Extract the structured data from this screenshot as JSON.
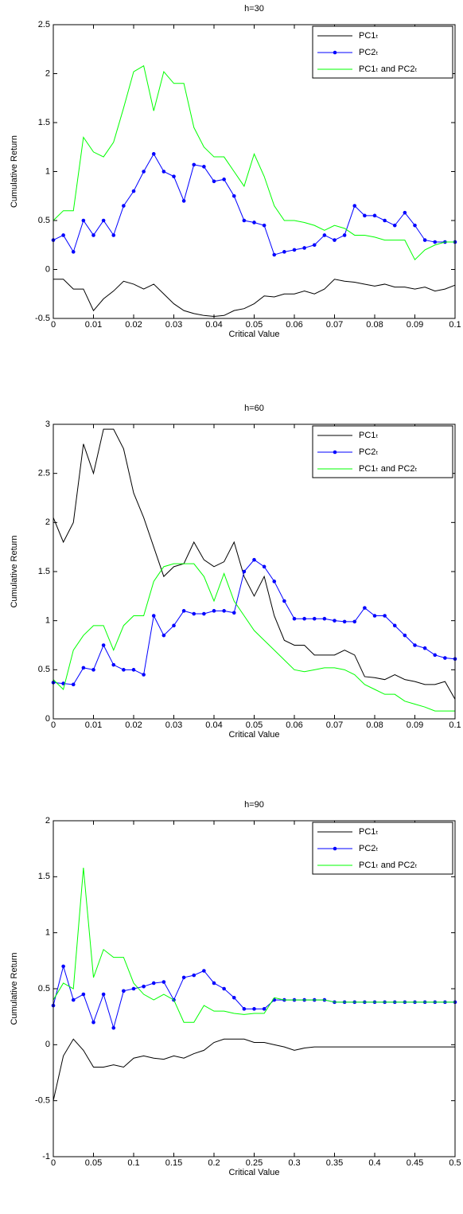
{
  "chart_data": [
    {
      "type": "line",
      "title": "h=30",
      "xlabel": "Critical Value",
      "ylabel": "Cumulative Return",
      "x": [
        0,
        0.0025,
        0.005,
        0.0075,
        0.01,
        0.0125,
        0.015,
        0.0175,
        0.02,
        0.0225,
        0.025,
        0.0275,
        0.03,
        0.0325,
        0.035,
        0.0375,
        0.04,
        0.0425,
        0.045,
        0.0475,
        0.05,
        0.0525,
        0.055,
        0.0575,
        0.06,
        0.0625,
        0.065,
        0.0675,
        0.07,
        0.0725,
        0.075,
        0.0775,
        0.08,
        0.0825,
        0.085,
        0.0875,
        0.09,
        0.0925,
        0.095,
        0.0975,
        0.1
      ],
      "series": [
        {
          "name": "PC1ₜ",
          "color": "#000000",
          "values": [
            -0.1,
            -0.1,
            -0.2,
            -0.2,
            -0.42,
            -0.3,
            -0.22,
            -0.12,
            -0.15,
            -0.2,
            -0.15,
            -0.25,
            -0.35,
            -0.42,
            -0.45,
            -0.47,
            -0.48,
            -0.47,
            -0.42,
            -0.4,
            -0.35,
            -0.27,
            -0.28,
            -0.25,
            -0.25,
            -0.22,
            -0.25,
            -0.2,
            -0.1,
            -0.12,
            -0.13,
            -0.15,
            -0.17,
            -0.15,
            -0.18,
            -0.18,
            -0.2,
            -0.18,
            -0.22,
            -0.2,
            -0.16
          ]
        },
        {
          "name": "PC2ₜ",
          "color": "#0000ff",
          "marker": "o",
          "values": [
            0.3,
            0.35,
            0.18,
            0.5,
            0.35,
            0.5,
            0.35,
            0.65,
            0.8,
            1.0,
            1.18,
            1.0,
            0.95,
            0.7,
            1.07,
            1.05,
            0.9,
            0.92,
            0.75,
            0.5,
            0.48,
            0.45,
            0.15,
            0.18,
            0.2,
            0.22,
            0.25,
            0.35,
            0.3,
            0.35,
            0.65,
            0.55,
            0.55,
            0.5,
            0.45,
            0.58,
            0.45,
            0.3,
            0.28,
            0.28,
            0.28
          ]
        },
        {
          "name": "PC1ₜ and PC2ₜ",
          "color": "#00ff00",
          "values": [
            0.5,
            0.6,
            0.6,
            1.35,
            1.2,
            1.15,
            1.3,
            1.65,
            2.02,
            2.08,
            1.62,
            2.02,
            1.9,
            1.9,
            1.45,
            1.25,
            1.15,
            1.15,
            1.0,
            0.85,
            1.18,
            0.95,
            0.65,
            0.5,
            0.5,
            0.48,
            0.45,
            0.4,
            0.45,
            0.42,
            0.35,
            0.35,
            0.33,
            0.3,
            0.3,
            0.3,
            0.1,
            0.2,
            0.25,
            0.28,
            0.28
          ]
        }
      ],
      "xlim": [
        0,
        0.1
      ],
      "xticks": [
        0,
        0.01,
        0.02,
        0.03,
        0.04,
        0.05,
        0.06,
        0.07,
        0.08,
        0.09,
        0.1
      ],
      "ylim": [
        -0.5,
        2.5
      ],
      "yticks": [
        -0.5,
        0,
        0.5,
        1,
        1.5,
        2,
        2.5
      ],
      "legend": "upper right"
    },
    {
      "type": "line",
      "title": "h=60",
      "xlabel": "Critical Value",
      "ylabel": "Cumulative Return",
      "x": [
        0,
        0.0025,
        0.005,
        0.0075,
        0.01,
        0.0125,
        0.015,
        0.0175,
        0.02,
        0.0225,
        0.025,
        0.0275,
        0.03,
        0.0325,
        0.035,
        0.0375,
        0.04,
        0.0425,
        0.045,
        0.0475,
        0.05,
        0.0525,
        0.055,
        0.0575,
        0.06,
        0.0625,
        0.065,
        0.0675,
        0.07,
        0.0725,
        0.075,
        0.0775,
        0.08,
        0.0825,
        0.085,
        0.0875,
        0.09,
        0.0925,
        0.095,
        0.0975,
        0.1
      ],
      "series": [
        {
          "name": "PC1ₜ",
          "color": "#000000",
          "values": [
            2.05,
            1.8,
            2.0,
            2.8,
            2.5,
            2.95,
            2.95,
            2.75,
            2.3,
            2.05,
            1.75,
            1.45,
            1.55,
            1.58,
            1.8,
            1.62,
            1.55,
            1.6,
            1.8,
            1.45,
            1.25,
            1.45,
            1.05,
            0.8,
            0.75,
            0.75,
            0.65,
            0.65,
            0.65,
            0.7,
            0.65,
            0.43,
            0.42,
            0.4,
            0.45,
            0.4,
            0.38,
            0.35,
            0.35,
            0.38,
            0.2
          ]
        },
        {
          "name": "PC2ₜ",
          "color": "#0000ff",
          "marker": "o",
          "values": [
            0.37,
            0.36,
            0.35,
            0.52,
            0.5,
            0.75,
            0.55,
            0.5,
            0.5,
            0.45,
            1.05,
            0.85,
            0.95,
            1.1,
            1.07,
            1.07,
            1.1,
            1.1,
            1.08,
            1.5,
            1.62,
            1.55,
            1.4,
            1.2,
            1.02,
            1.02,
            1.02,
            1.02,
            1.0,
            0.99,
            0.99,
            1.13,
            1.05,
            1.05,
            0.95,
            0.85,
            0.75,
            0.72,
            0.65,
            0.62,
            0.61
          ]
        },
        {
          "name": "PC1ₜ and PC2ₜ",
          "color": "#00ff00",
          "values": [
            0.4,
            0.3,
            0.7,
            0.85,
            0.95,
            0.95,
            0.7,
            0.95,
            1.05,
            1.05,
            1.4,
            1.55,
            1.58,
            1.58,
            1.58,
            1.45,
            1.2,
            1.48,
            1.2,
            1.05,
            0.9,
            0.8,
            0.7,
            0.6,
            0.5,
            0.48,
            0.5,
            0.52,
            0.52,
            0.5,
            0.45,
            0.35,
            0.3,
            0.25,
            0.25,
            0.18,
            0.15,
            0.12,
            0.08,
            0.08,
            0.08
          ]
        }
      ],
      "xlim": [
        0,
        0.1
      ],
      "xticks": [
        0,
        0.01,
        0.02,
        0.03,
        0.04,
        0.05,
        0.06,
        0.07,
        0.08,
        0.09,
        0.1
      ],
      "ylim": [
        0,
        3
      ],
      "yticks": [
        0,
        0.5,
        1,
        1.5,
        2,
        2.5,
        3
      ],
      "legend": "upper right"
    },
    {
      "type": "line",
      "title": "h=90",
      "xlabel": "Critical Value",
      "ylabel": "Cumulative Return",
      "x": [
        0,
        0.0125,
        0.025,
        0.0375,
        0.05,
        0.0625,
        0.075,
        0.0875,
        0.1,
        0.1125,
        0.125,
        0.1375,
        0.15,
        0.1625,
        0.175,
        0.1875,
        0.2,
        0.2125,
        0.225,
        0.2375,
        0.25,
        0.2625,
        0.275,
        0.2875,
        0.3,
        0.3125,
        0.325,
        0.3375,
        0.35,
        0.3625,
        0.375,
        0.3875,
        0.4,
        0.4125,
        0.425,
        0.4375,
        0.45,
        0.4625,
        0.475,
        0.4875,
        0.5
      ],
      "series": [
        {
          "name": "PC1ₜ",
          "color": "#000000",
          "values": [
            -0.5,
            -0.1,
            0.05,
            -0.05,
            -0.2,
            -0.2,
            -0.18,
            -0.2,
            -0.12,
            -0.1,
            -0.12,
            -0.13,
            -0.1,
            -0.12,
            -0.08,
            -0.05,
            0.02,
            0.05,
            0.05,
            0.05,
            0.02,
            0.02,
            0,
            -0.02,
            -0.05,
            -0.03,
            -0.02,
            -0.02,
            -0.02,
            -0.02,
            -0.02,
            -0.02,
            -0.02,
            -0.02,
            -0.02,
            -0.02,
            -0.02,
            -0.02,
            -0.02,
            -0.02,
            -0.02
          ]
        },
        {
          "name": "PC2ₜ",
          "color": "#0000ff",
          "marker": "o",
          "values": [
            0.35,
            0.7,
            0.4,
            0.45,
            0.2,
            0.45,
            0.15,
            0.48,
            0.5,
            0.52,
            0.55,
            0.56,
            0.4,
            0.6,
            0.62,
            0.66,
            0.55,
            0.5,
            0.42,
            0.32,
            0.32,
            0.32,
            0.4,
            0.4,
            0.4,
            0.4,
            0.4,
            0.4,
            0.38,
            0.38,
            0.38,
            0.38,
            0.38,
            0.38,
            0.38,
            0.38,
            0.38,
            0.38,
            0.38,
            0.38,
            0.38
          ]
        },
        {
          "name": "PC1ₜ and PC2ₜ",
          "color": "#00ff00",
          "values": [
            0.4,
            0.55,
            0.5,
            1.58,
            0.6,
            0.85,
            0.78,
            0.78,
            0.55,
            0.45,
            0.4,
            0.45,
            0.4,
            0.2,
            0.2,
            0.35,
            0.3,
            0.3,
            0.28,
            0.27,
            0.28,
            0.28,
            0.42,
            0.4,
            0.4,
            0.4,
            0.4,
            0.4,
            0.38,
            0.38,
            0.38,
            0.38,
            0.38,
            0.38,
            0.38,
            0.38,
            0.38,
            0.38,
            0.38,
            0.38,
            0.38
          ]
        }
      ],
      "xlim": [
        0,
        0.5
      ],
      "xticks": [
        0,
        0.05,
        0.1,
        0.15,
        0.2,
        0.25,
        0.3,
        0.35,
        0.4,
        0.45,
        0.5
      ],
      "ylim": [
        -1,
        2
      ],
      "yticks": [
        -1,
        -0.5,
        0,
        0.5,
        1,
        1.5,
        2
      ],
      "legend": "upper right"
    }
  ]
}
